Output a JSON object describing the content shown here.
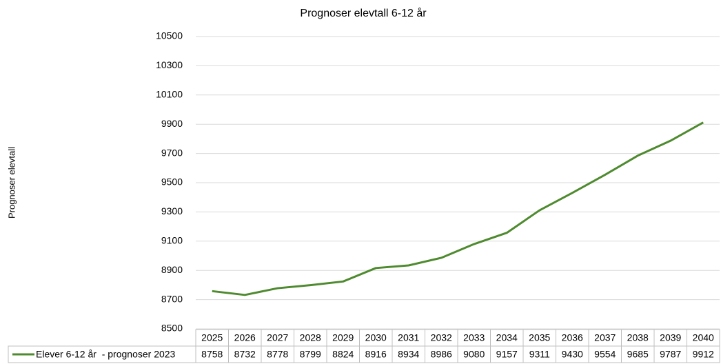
{
  "chart_data": {
    "type": "line",
    "title": "Prognoser elevtall 6-12 år",
    "y_label": "Prognoser elevtall",
    "categories": [
      "2025",
      "2026",
      "2027",
      "2028",
      "2029",
      "2030",
      "2031",
      "2032",
      "2033",
      "2034",
      "2035",
      "2036",
      "2037",
      "2038",
      "2039",
      "2040"
    ],
    "series": [
      {
        "name": "Elever 6-12 år  - prognoser 2023",
        "color": "#4e8a2e",
        "values": [
          8758,
          8732,
          8778,
          8799,
          8824,
          8916,
          8934,
          8986,
          9080,
          9157,
          9311,
          9430,
          9554,
          9685,
          9787,
          9912
        ]
      }
    ],
    "ylim": [
      8500,
      10500
    ],
    "yticks": [
      8500,
      8700,
      8900,
      9100,
      9300,
      9500,
      9700,
      9900,
      10100,
      10300,
      10500
    ],
    "grid": true
  }
}
